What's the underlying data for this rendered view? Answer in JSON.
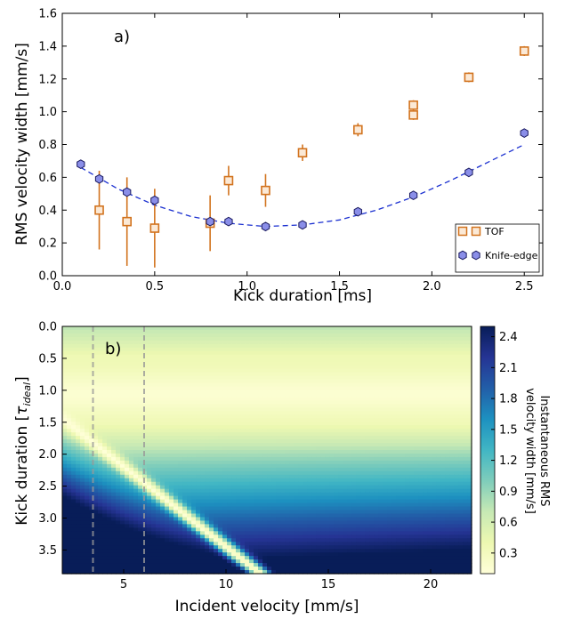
{
  "chart_data": [
    {
      "type": "scatter",
      "panel_label": "a)",
      "xlabel": "Kick duration [ms]",
      "ylabel": "RMS velocity width [mm/s]",
      "xlim": [
        0.0,
        2.6
      ],
      "ylim": [
        0.0,
        1.6
      ],
      "xticks": [
        "0.0",
        "0.5",
        "1.0",
        "1.5",
        "2.0",
        "2.5"
      ],
      "yticks": [
        "0.0",
        "0.2",
        "0.4",
        "0.6",
        "0.8",
        "1.0",
        "1.2",
        "1.4",
        "1.6"
      ],
      "legend_position": "bottom-right",
      "series": [
        {
          "name": "TOF",
          "marker": "square",
          "color": "#d2731e",
          "x": [
            0.2,
            0.35,
            0.5,
            0.8,
            0.9,
            1.1,
            1.3,
            1.6,
            1.9,
            1.9,
            2.2,
            2.5
          ],
          "y": [
            0.4,
            0.33,
            0.29,
            0.32,
            0.58,
            0.52,
            0.75,
            0.89,
            0.98,
            1.04,
            1.21,
            1.37
          ],
          "yerr": [
            0.24,
            0.27,
            0.24,
            0.17,
            0.09,
            0.1,
            0.05,
            0.04,
            0.03,
            0.03,
            0.03,
            0.03
          ]
        },
        {
          "name": "Knife-edge",
          "marker": "hexagon",
          "color": "#8a8ee8",
          "x": [
            0.1,
            0.2,
            0.35,
            0.5,
            0.8,
            0.9,
            1.1,
            1.3,
            1.6,
            1.9,
            2.2,
            2.5
          ],
          "y": [
            0.68,
            0.59,
            0.51,
            0.46,
            0.33,
            0.33,
            0.3,
            0.31,
            0.39,
            0.49,
            0.63,
            0.87
          ],
          "yerr": [
            0.02,
            0.02,
            0.02,
            0.02,
            0.02,
            0.02,
            0.01,
            0.01,
            0.01,
            0.01,
            0.01,
            0.02
          ]
        }
      ],
      "fit": {
        "style": "dashed",
        "color": "#1a2fd0",
        "x": [
          0.1,
          0.3,
          0.5,
          0.7,
          0.9,
          1.1,
          1.3,
          1.5,
          1.7,
          1.9,
          2.1,
          2.3,
          2.5
        ],
        "y": [
          0.66,
          0.53,
          0.43,
          0.36,
          0.32,
          0.3,
          0.31,
          0.34,
          0.4,
          0.48,
          0.58,
          0.69,
          0.8
        ]
      }
    },
    {
      "type": "heatmap",
      "panel_label": "b)",
      "xlabel": "Incident velocity [mm/s]",
      "ylabel_prefix": "Kick duration [",
      "ylabel_symbol": "τ",
      "ylabel_subscript": "ideal",
      "ylabel_suffix": "]",
      "xlim": [
        2,
        22
      ],
      "ylim": [
        0.0,
        3.87
      ],
      "y_inverted": true,
      "xticks": [
        "5",
        "10",
        "15",
        "20"
      ],
      "yticks": [
        "0.0",
        "0.5",
        "1.0",
        "1.5",
        "2.0",
        "2.5",
        "3.0",
        "3.5"
      ],
      "vlines_x": [
        3.5,
        6.0
      ],
      "colorbar": {
        "label_line1": "Instantaneous RMS",
        "label_line2": "velocity width [mm/s]",
        "ticks": [
          "0.3",
          "0.6",
          "0.9",
          "1.2",
          "1.5",
          "1.8",
          "2.1",
          "2.4"
        ],
        "range": [
          0.1,
          2.5
        ],
        "colormap": [
          "#ffffd9",
          "#edf8b1",
          "#c7e9b4",
          "#7fcdbb",
          "#41b6c4",
          "#1d91c0",
          "#225ea8",
          "#253494",
          "#081d58"
        ]
      }
    }
  ]
}
